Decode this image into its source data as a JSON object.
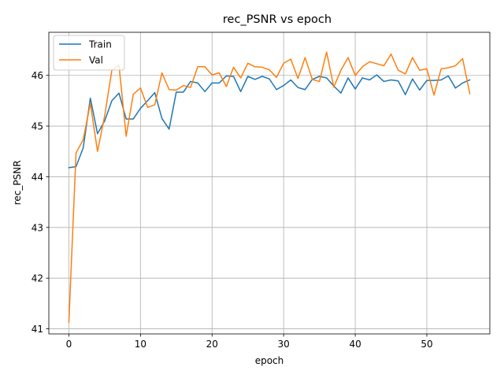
{
  "chart_data": {
    "type": "line",
    "title": "rec_PSNR vs epoch",
    "xlabel": "epoch",
    "ylabel": "rec_PSNR",
    "xlim": [
      -2.8,
      58.8
    ],
    "ylim": [
      40.9,
      46.85
    ],
    "xticks": [
      "0",
      "10",
      "20",
      "30",
      "40",
      "50"
    ],
    "xtick_values": [
      0,
      10,
      20,
      30,
      40,
      50
    ],
    "yticks": [
      "41",
      "42",
      "43",
      "44",
      "45",
      "46"
    ],
    "ytick_values": [
      41,
      42,
      43,
      44,
      45,
      46
    ],
    "grid": true,
    "legend_position": "top-left",
    "x": [
      0,
      1,
      2,
      3,
      4,
      5,
      6,
      7,
      8,
      9,
      10,
      11,
      12,
      13,
      14,
      15,
      16,
      17,
      18,
      19,
      20,
      21,
      22,
      23,
      24,
      25,
      26,
      27,
      28,
      29,
      30,
      31,
      32,
      33,
      34,
      35,
      36,
      37,
      38,
      39,
      40,
      41,
      42,
      43,
      44,
      45,
      46,
      47,
      48,
      49,
      50,
      51,
      52,
      53,
      54,
      55,
      56
    ],
    "series": [
      {
        "name": "Train",
        "color": "#1f77b4",
        "values": [
          44.18,
          44.2,
          44.57,
          45.55,
          44.85,
          45.1,
          45.5,
          45.65,
          45.14,
          45.14,
          45.35,
          45.5,
          45.66,
          45.15,
          44.94,
          45.67,
          45.67,
          45.88,
          45.85,
          45.68,
          45.85,
          45.85,
          45.99,
          45.98,
          45.68,
          45.98,
          45.92,
          45.98,
          45.93,
          45.72,
          45.8,
          45.91,
          45.76,
          45.72,
          45.92,
          45.98,
          45.95,
          45.79,
          45.65,
          45.95,
          45.73,
          45.95,
          45.91,
          46.01,
          45.88,
          45.91,
          45.89,
          45.62,
          45.93,
          45.71,
          45.9,
          45.9,
          45.91,
          45.99,
          45.75,
          45.85,
          45.91
        ]
      },
      {
        "name": "Val",
        "color": "#ff7f0e",
        "values": [
          41.13,
          44.47,
          44.73,
          45.45,
          44.5,
          45.2,
          46.1,
          46.2,
          44.8,
          45.63,
          45.75,
          45.37,
          45.42,
          46.05,
          45.72,
          45.71,
          45.8,
          45.76,
          46.17,
          46.17,
          46.01,
          46.05,
          45.78,
          46.16,
          45.95,
          46.24,
          46.17,
          46.16,
          46.11,
          45.96,
          46.24,
          46.32,
          45.94,
          46.35,
          45.92,
          45.88,
          46.46,
          45.77,
          46.1,
          46.35,
          46.0,
          46.17,
          46.27,
          46.23,
          46.19,
          46.42,
          46.1,
          46.03,
          46.35,
          46.1,
          46.13,
          45.61,
          46.13,
          46.15,
          46.19,
          46.33,
          45.64
        ]
      }
    ]
  }
}
